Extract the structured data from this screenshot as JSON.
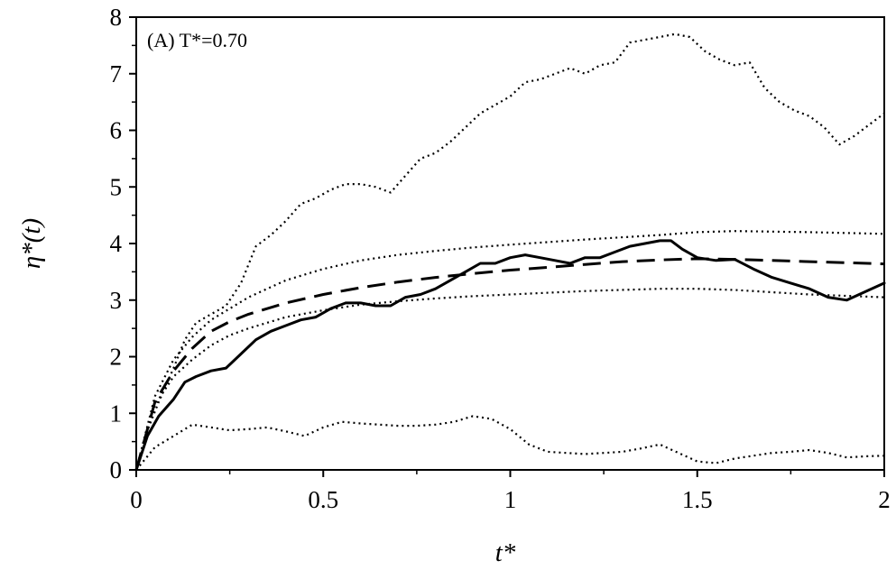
{
  "chart_data": {
    "type": "line",
    "annotation": "(A) T*=0.70",
    "xlabel": "t*",
    "ylabel": "η*(t)",
    "xlim": [
      0,
      2
    ],
    "ylim": [
      0,
      8
    ],
    "xticks": [
      {
        "value": 0,
        "label": "0"
      },
      {
        "value": 0.5,
        "label": "0.5"
      },
      {
        "value": 1,
        "label": "1"
      },
      {
        "value": 1.5,
        "label": "1.5"
      },
      {
        "value": 2,
        "label": "2"
      }
    ],
    "yticks": [
      {
        "value": 0,
        "label": "0"
      },
      {
        "value": 1,
        "label": "1"
      },
      {
        "value": 2,
        "label": "2"
      },
      {
        "value": 3,
        "label": "3"
      },
      {
        "value": 4,
        "label": "4"
      },
      {
        "value": 5,
        "label": "5"
      },
      {
        "value": 6,
        "label": "6"
      },
      {
        "value": 7,
        "label": "7"
      },
      {
        "value": 8,
        "label": "8"
      }
    ],
    "grid": false,
    "series": [
      {
        "style": "solid",
        "x": [
          0,
          0.03,
          0.06,
          0.1,
          0.13,
          0.16,
          0.2,
          0.24,
          0.28,
          0.32,
          0.36,
          0.4,
          0.44,
          0.48,
          0.52,
          0.56,
          0.6,
          0.64,
          0.68,
          0.72,
          0.76,
          0.8,
          0.84,
          0.88,
          0.92,
          0.96,
          1.0,
          1.04,
          1.08,
          1.12,
          1.16,
          1.2,
          1.24,
          1.28,
          1.32,
          1.36,
          1.4,
          1.43,
          1.46,
          1.5,
          1.55,
          1.6,
          1.65,
          1.7,
          1.75,
          1.8,
          1.85,
          1.9,
          1.95,
          2.0
        ],
        "y": [
          0,
          0.6,
          0.95,
          1.25,
          1.55,
          1.65,
          1.75,
          1.8,
          2.05,
          2.3,
          2.45,
          2.55,
          2.65,
          2.7,
          2.85,
          2.95,
          2.95,
          2.9,
          2.9,
          3.05,
          3.1,
          3.2,
          3.35,
          3.5,
          3.65,
          3.65,
          3.75,
          3.8,
          3.75,
          3.7,
          3.65,
          3.75,
          3.75,
          3.85,
          3.95,
          4.0,
          4.05,
          4.05,
          3.9,
          3.75,
          3.7,
          3.72,
          3.55,
          3.4,
          3.3,
          3.2,
          3.05,
          3.0,
          3.15,
          3.3
        ]
      },
      {
        "style": "dashed",
        "x": [
          0,
          0.05,
          0.1,
          0.15,
          0.2,
          0.25,
          0.3,
          0.4,
          0.5,
          0.6,
          0.7,
          0.8,
          0.9,
          1.0,
          1.1,
          1.2,
          1.3,
          1.4,
          1.5,
          1.6,
          1.7,
          1.8,
          1.9,
          2.0
        ],
        "y": [
          0,
          1.2,
          1.75,
          2.15,
          2.45,
          2.62,
          2.75,
          2.95,
          3.1,
          3.22,
          3.32,
          3.4,
          3.47,
          3.53,
          3.58,
          3.63,
          3.68,
          3.71,
          3.73,
          3.72,
          3.7,
          3.68,
          3.66,
          3.64
        ]
      },
      {
        "style": "dotted",
        "x": [
          0,
          0.05,
          0.1,
          0.15,
          0.2,
          0.25,
          0.3,
          0.4,
          0.5,
          0.6,
          0.7,
          0.8,
          0.9,
          1.0,
          1.2,
          1.4,
          1.5,
          1.6,
          1.8,
          2.0
        ],
        "y": [
          0,
          1.3,
          1.95,
          2.35,
          2.65,
          2.85,
          3.05,
          3.35,
          3.55,
          3.7,
          3.8,
          3.87,
          3.93,
          3.98,
          4.07,
          4.15,
          4.2,
          4.22,
          4.2,
          4.17
        ]
      },
      {
        "style": "dotted",
        "x": [
          0,
          0.05,
          0.1,
          0.15,
          0.2,
          0.25,
          0.3,
          0.4,
          0.5,
          0.6,
          0.7,
          0.8,
          0.9,
          1.0,
          1.2,
          1.4,
          1.5,
          1.6,
          1.8,
          2.0
        ],
        "y": [
          0,
          1.15,
          1.65,
          1.95,
          2.2,
          2.38,
          2.5,
          2.7,
          2.82,
          2.92,
          2.98,
          3.03,
          3.07,
          3.1,
          3.16,
          3.2,
          3.2,
          3.18,
          3.1,
          3.05
        ]
      },
      {
        "style": "dotted",
        "x": [
          0,
          0.03,
          0.06,
          0.1,
          0.13,
          0.16,
          0.2,
          0.24,
          0.28,
          0.32,
          0.36,
          0.4,
          0.44,
          0.48,
          0.52,
          0.56,
          0.6,
          0.64,
          0.68,
          0.72,
          0.76,
          0.8,
          0.84,
          0.88,
          0.92,
          0.96,
          1.0,
          1.04,
          1.08,
          1.12,
          1.16,
          1.2,
          1.24,
          1.28,
          1.32,
          1.36,
          1.4,
          1.44,
          1.48,
          1.52,
          1.56,
          1.6,
          1.64,
          1.68,
          1.72,
          1.76,
          1.8,
          1.84,
          1.88,
          1.92,
          1.96,
          2.0
        ],
        "y": [
          0,
          0.7,
          1.2,
          1.8,
          2.3,
          2.6,
          2.75,
          2.9,
          3.3,
          3.95,
          4.15,
          4.4,
          4.7,
          4.8,
          4.95,
          5.05,
          5.05,
          5.0,
          4.9,
          5.2,
          5.5,
          5.6,
          5.8,
          6.05,
          6.3,
          6.45,
          6.6,
          6.85,
          6.9,
          7.0,
          7.1,
          7.0,
          7.15,
          7.2,
          7.55,
          7.6,
          7.65,
          7.7,
          7.65,
          7.4,
          7.25,
          7.15,
          7.2,
          6.75,
          6.5,
          6.35,
          6.25,
          6.05,
          5.75,
          5.9,
          6.1,
          6.3
        ]
      },
      {
        "style": "dotted",
        "x": [
          0,
          0.05,
          0.1,
          0.15,
          0.2,
          0.25,
          0.3,
          0.35,
          0.4,
          0.45,
          0.5,
          0.55,
          0.6,
          0.65,
          0.7,
          0.75,
          0.8,
          0.85,
          0.9,
          0.95,
          1.0,
          1.05,
          1.1,
          1.15,
          1.2,
          1.25,
          1.3,
          1.35,
          1.4,
          1.45,
          1.5,
          1.55,
          1.6,
          1.65,
          1.7,
          1.75,
          1.8,
          1.85,
          1.9,
          1.95,
          2.0
        ],
        "y": [
          0,
          0.4,
          0.6,
          0.8,
          0.75,
          0.7,
          0.72,
          0.75,
          0.68,
          0.6,
          0.75,
          0.85,
          0.82,
          0.8,
          0.78,
          0.78,
          0.8,
          0.85,
          0.95,
          0.9,
          0.72,
          0.45,
          0.32,
          0.3,
          0.28,
          0.3,
          0.32,
          0.38,
          0.45,
          0.3,
          0.15,
          0.12,
          0.2,
          0.25,
          0.3,
          0.32,
          0.35,
          0.3,
          0.22,
          0.24,
          0.25
        ]
      }
    ]
  }
}
